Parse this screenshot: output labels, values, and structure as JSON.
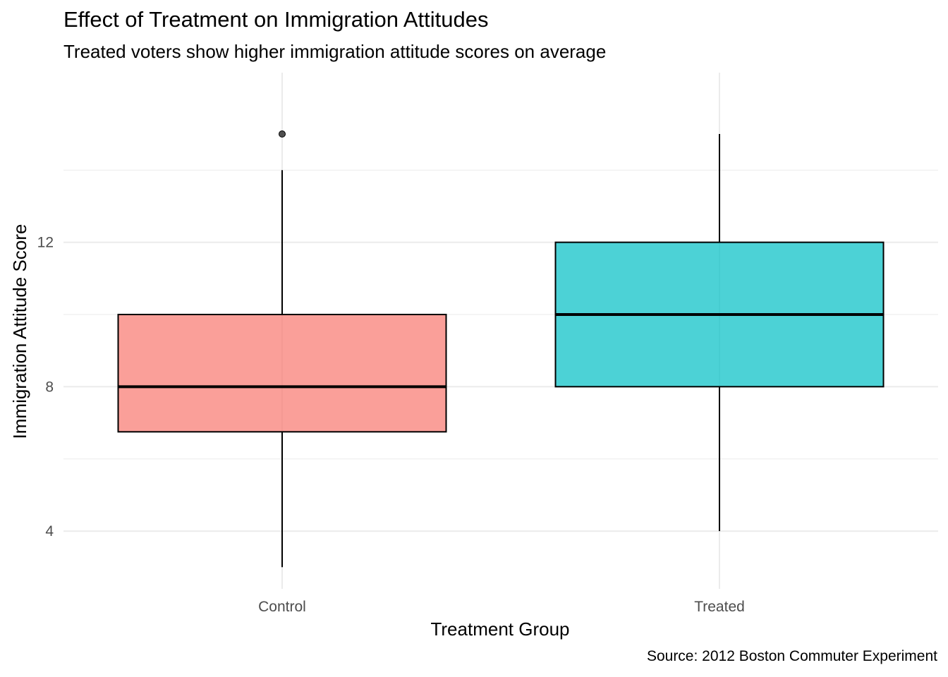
{
  "chart_data": {
    "type": "boxplot",
    "title": "Effect of Treatment on Immigration Attitudes",
    "subtitle": "Treated voters show higher immigration attitude scores on average",
    "caption": "Source: 2012 Boston Commuter Experiment",
    "xlabel": "Treatment Group",
    "ylabel": "Immigration Attitude Score",
    "categories": [
      "Control",
      "Treated"
    ],
    "ylim": [
      2.4,
      16.7
    ],
    "y_ticks": [
      4,
      8,
      12
    ],
    "y_minor_ticks": [
      6,
      10,
      14
    ],
    "grid": true,
    "legend": "none",
    "boxes": [
      {
        "category": "Control",
        "whisker_low": 3,
        "q1": 6.75,
        "median": 8,
        "q3": 10,
        "whisker_high": 14,
        "outliers": [
          15
        ],
        "color": "#F8766D"
      },
      {
        "category": "Treated",
        "whisker_low": 4,
        "q1": 8,
        "median": 10,
        "q3": 12,
        "whisker_high": 15,
        "outliers": [],
        "color": "#00BFC4"
      }
    ]
  }
}
